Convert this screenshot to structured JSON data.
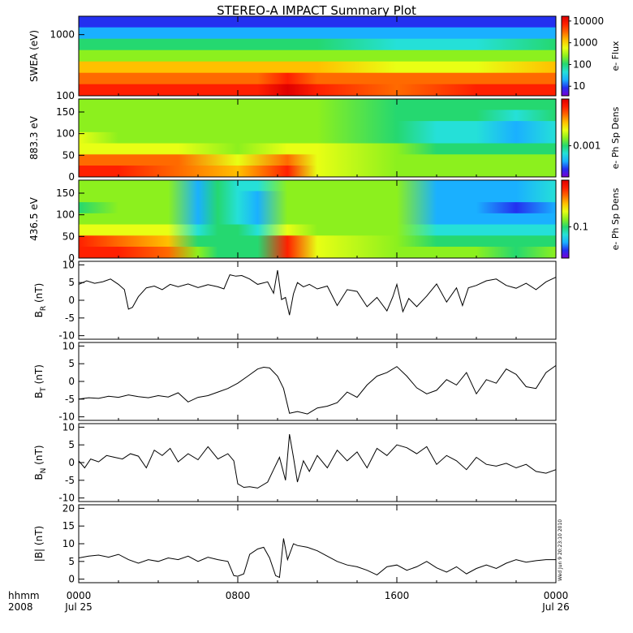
{
  "title": "STEREO-A IMPACT Summary Plot",
  "stamp": "Wed Jun  9 20:23:10 2010",
  "x_axis": {
    "ticks": [
      {
        "hour": 0,
        "time": "0000",
        "date": "Jul 25"
      },
      {
        "hour": 8,
        "time": "0800",
        "date": ""
      },
      {
        "hour": 16,
        "time": "1600",
        "date": ""
      },
      {
        "hour": 24,
        "time": "0000",
        "date": "Jul 26"
      }
    ],
    "left_label_top": "hhmm",
    "left_label_bottom": "2008"
  },
  "colors": {
    "line": "#000000",
    "axis": "#000000",
    "colormap": [
      "#7a00d6",
      "#2330f0",
      "#1ab0ff",
      "#25e0d8",
      "#25d870",
      "#8cf01e",
      "#e8ff14",
      "#ffc000",
      "#ff6a00",
      "#ff2000",
      "#e00000"
    ]
  },
  "chart_data": [
    {
      "type": "heatmap",
      "panel": "swea",
      "ylabel": "SWEA (eV)",
      "yscale": "log",
      "ylim": [
        100,
        2000
      ],
      "yticks": [
        "100",
        "1000"
      ],
      "colorbar": {
        "label": "e- Flux",
        "scale": "log",
        "ticks": [
          "10",
          "100",
          "1000",
          "10000"
        ]
      },
      "x_hours": [
        0,
        3,
        6,
        9,
        10.5,
        12,
        16,
        20,
        24
      ],
      "rows": [
        {
          "energy_eV": 2000,
          "levels": [
            0.05,
            0.05,
            0.05,
            0.05,
            0.05,
            0.05,
            0.05,
            0.05,
            0.05
          ]
        },
        {
          "energy_eV": 1500,
          "levels": [
            0.2,
            0.2,
            0.2,
            0.2,
            0.2,
            0.2,
            0.18,
            0.2,
            0.2
          ]
        },
        {
          "energy_eV": 1000,
          "levels": [
            0.35,
            0.35,
            0.35,
            0.35,
            0.38,
            0.35,
            0.3,
            0.33,
            0.35
          ]
        },
        {
          "energy_eV": 600,
          "levels": [
            0.5,
            0.5,
            0.5,
            0.5,
            0.52,
            0.5,
            0.45,
            0.48,
            0.5
          ]
        },
        {
          "energy_eV": 350,
          "levels": [
            0.65,
            0.65,
            0.66,
            0.66,
            0.7,
            0.66,
            0.62,
            0.64,
            0.66
          ]
        },
        {
          "energy_eV": 200,
          "levels": [
            0.8,
            0.8,
            0.8,
            0.8,
            0.9,
            0.82,
            0.76,
            0.8,
            0.8
          ]
        },
        {
          "energy_eV": 100,
          "levels": [
            0.88,
            0.88,
            0.88,
            0.88,
            0.96,
            0.9,
            0.84,
            0.88,
            0.88
          ]
        }
      ]
    },
    {
      "type": "heatmap",
      "panel": "pad883",
      "ylabel": "883.3 eV",
      "ylim": [
        0,
        180
      ],
      "yticks": [
        "0",
        "50",
        "100",
        "150"
      ],
      "colorbar": {
        "label": "e- Ph Sp Dens",
        "scale": "log",
        "ticks": [
          "0.001"
        ]
      },
      "x_hours": [
        0,
        2,
        5,
        8,
        10.5,
        12,
        16,
        18,
        20,
        22,
        24
      ],
      "rows": [
        {
          "pitch_deg": 170,
          "levels": [
            0.5,
            0.5,
            0.5,
            0.45,
            0.48,
            0.5,
            0.4,
            0.35,
            0.4,
            0.35,
            0.4
          ]
        },
        {
          "pitch_deg": 135,
          "levels": [
            0.5,
            0.5,
            0.48,
            0.45,
            0.48,
            0.5,
            0.4,
            0.35,
            0.35,
            0.3,
            0.35
          ]
        },
        {
          "pitch_deg": 100,
          "levels": [
            0.52,
            0.5,
            0.5,
            0.46,
            0.5,
            0.5,
            0.38,
            0.3,
            0.25,
            0.2,
            0.3
          ]
        },
        {
          "pitch_deg": 70,
          "levels": [
            0.55,
            0.54,
            0.52,
            0.48,
            0.52,
            0.52,
            0.4,
            0.32,
            0.25,
            0.2,
            0.3
          ]
        },
        {
          "pitch_deg": 45,
          "levels": [
            0.62,
            0.6,
            0.58,
            0.52,
            0.6,
            0.56,
            0.45,
            0.4,
            0.38,
            0.35,
            0.4
          ]
        },
        {
          "pitch_deg": 20,
          "levels": [
            0.8,
            0.78,
            0.75,
            0.6,
            0.82,
            0.6,
            0.5,
            0.48,
            0.5,
            0.5,
            0.5
          ]
        },
        {
          "pitch_deg": 5,
          "levels": [
            0.88,
            0.86,
            0.84,
            0.65,
            0.9,
            0.62,
            0.52,
            0.5,
            0.52,
            0.52,
            0.52
          ]
        }
      ]
    },
    {
      "type": "heatmap",
      "panel": "pad436",
      "ylabel": "436.5 eV",
      "ylim": [
        0,
        180
      ],
      "yticks": [
        "0",
        "50",
        "100",
        "150"
      ],
      "colorbar": {
        "label": "e- Ph Sp Dens",
        "scale": "log",
        "ticks": [
          "0.1"
        ]
      },
      "x_hours": [
        0,
        2,
        4.5,
        6,
        7,
        8,
        9,
        10.5,
        12,
        16,
        18,
        20,
        22,
        24
      ],
      "rows": [
        {
          "pitch_deg": 170,
          "levels": [
            0.45,
            0.45,
            0.45,
            0.2,
            0.35,
            0.3,
            0.25,
            0.45,
            0.45,
            0.45,
            0.2,
            0.2,
            0.2,
            0.25
          ]
        },
        {
          "pitch_deg": 135,
          "levels": [
            0.45,
            0.45,
            0.45,
            0.18,
            0.35,
            0.3,
            0.22,
            0.45,
            0.45,
            0.45,
            0.2,
            0.18,
            0.18,
            0.25
          ]
        },
        {
          "pitch_deg": 100,
          "levels": [
            0.4,
            0.45,
            0.45,
            0.15,
            0.35,
            0.3,
            0.2,
            0.45,
            0.45,
            0.45,
            0.18,
            0.15,
            0.12,
            0.2
          ]
        },
        {
          "pitch_deg": 70,
          "levels": [
            0.45,
            0.48,
            0.48,
            0.2,
            0.35,
            0.32,
            0.22,
            0.48,
            0.5,
            0.48,
            0.2,
            0.2,
            0.15,
            0.22
          ]
        },
        {
          "pitch_deg": 45,
          "levels": [
            0.6,
            0.58,
            0.55,
            0.3,
            0.35,
            0.35,
            0.3,
            0.62,
            0.52,
            0.5,
            0.3,
            0.3,
            0.25,
            0.3
          ]
        },
        {
          "pitch_deg": 20,
          "levels": [
            0.85,
            0.78,
            0.72,
            0.4,
            0.35,
            0.38,
            0.35,
            0.85,
            0.55,
            0.5,
            0.4,
            0.4,
            0.38,
            0.4
          ]
        },
        {
          "pitch_deg": 5,
          "levels": [
            0.92,
            0.86,
            0.8,
            0.45,
            0.35,
            0.4,
            0.4,
            0.92,
            0.58,
            0.5,
            0.45,
            0.45,
            0.42,
            0.45
          ]
        }
      ]
    },
    {
      "type": "line",
      "panel": "br",
      "ylabel": "B",
      "ylabel_sub": "R",
      "ylabel_suffix": " (nT)",
      "ylim": [
        -11,
        11
      ],
      "yticks": [
        -10,
        -5,
        0,
        5,
        10
      ],
      "x": [
        0,
        0.4,
        0.8,
        1.2,
        1.6,
        2.0,
        2.3,
        2.5,
        2.7,
        3.0,
        3.4,
        3.8,
        4.2,
        4.6,
        5.0,
        5.5,
        6.0,
        6.5,
        7.0,
        7.3,
        7.6,
        7.9,
        8.2,
        8.6,
        9.0,
        9.5,
        9.8,
        10.0,
        10.2,
        10.4,
        10.6,
        10.8,
        11.0,
        11.3,
        11.6,
        12.0,
        12.5,
        13.0,
        13.5,
        14.0,
        14.5,
        15.0,
        15.5,
        15.8,
        16.0,
        16.3,
        16.6,
        17.0,
        17.5,
        18.0,
        18.5,
        19.0,
        19.3,
        19.6,
        20.0,
        20.5,
        21.0,
        21.5,
        22.0,
        22.5,
        23.0,
        23.5,
        24.0
      ],
      "y": [
        4.5,
        5.5,
        4.8,
        5.2,
        6.0,
        4.5,
        3.0,
        -2.5,
        -2.0,
        1.0,
        3.5,
        4.0,
        3.0,
        4.5,
        3.8,
        4.6,
        3.6,
        4.4,
        3.8,
        3.2,
        7.2,
        6.8,
        7.0,
        6.0,
        4.5,
        5.2,
        2.0,
        8.5,
        0.2,
        0.8,
        -4.2,
        1.8,
        5.0,
        3.8,
        4.5,
        3.2,
        4.0,
        -1.5,
        3.0,
        2.5,
        -1.8,
        0.8,
        -3.0,
        1.0,
        4.5,
        -3.2,
        0.5,
        -1.8,
        1.2,
        4.6,
        -0.5,
        3.5,
        -1.5,
        3.5,
        4.2,
        5.5,
        6.0,
        4.2,
        3.4,
        4.8,
        3.0,
        5.2,
        6.5
      ]
    },
    {
      "type": "line",
      "panel": "bt",
      "ylabel": "B",
      "ylabel_sub": "T",
      "ylabel_suffix": " (nT)",
      "ylim": [
        -11,
        11
      ],
      "yticks": [
        -10,
        -5,
        0,
        5,
        10
      ],
      "x": [
        0,
        0.5,
        1.0,
        1.5,
        2.0,
        2.5,
        3.0,
        3.5,
        4.0,
        4.5,
        5.0,
        5.5,
        6.0,
        6.5,
        7.0,
        7.5,
        8.0,
        8.5,
        9.0,
        9.3,
        9.6,
        10.0,
        10.3,
        10.6,
        11.0,
        11.5,
        12.0,
        12.5,
        13.0,
        13.5,
        14.0,
        14.5,
        15.0,
        15.5,
        16.0,
        16.5,
        17.0,
        17.5,
        18.0,
        18.5,
        19.0,
        19.5,
        20.0,
        20.5,
        21.0,
        21.5,
        22.0,
        22.5,
        23.0,
        23.5,
        24.0
      ],
      "y": [
        -5.0,
        -4.6,
        -4.8,
        -4.2,
        -4.5,
        -3.8,
        -4.3,
        -4.6,
        -4.0,
        -4.4,
        -3.2,
        -5.8,
        -4.5,
        -4.0,
        -3.0,
        -2.0,
        -0.5,
        1.5,
        3.5,
        4.0,
        3.8,
        1.5,
        -2.0,
        -9.0,
        -8.5,
        -9.2,
        -7.5,
        -7.0,
        -6.0,
        -3.0,
        -4.5,
        -1.0,
        1.5,
        2.5,
        4.2,
        1.5,
        -1.8,
        -3.5,
        -2.5,
        0.5,
        -1.0,
        2.5,
        -3.5,
        0.5,
        -0.5,
        3.5,
        2.0,
        -1.5,
        -2.0,
        2.5,
        4.5
      ]
    },
    {
      "type": "line",
      "panel": "bn",
      "ylabel": "B",
      "ylabel_sub": "N",
      "ylabel_suffix": " (nT)",
      "ylim": [
        -11,
        11
      ],
      "yticks": [
        -10,
        -5,
        0,
        5,
        10
      ],
      "x": [
        0,
        0.3,
        0.6,
        1.0,
        1.4,
        1.8,
        2.2,
        2.6,
        3.0,
        3.4,
        3.8,
        4.2,
        4.6,
        5.0,
        5.5,
        6.0,
        6.5,
        7.0,
        7.5,
        7.8,
        8.0,
        8.3,
        8.6,
        9.0,
        9.5,
        9.8,
        10.1,
        10.4,
        10.6,
        10.8,
        11.0,
        11.3,
        11.6,
        12.0,
        12.5,
        13.0,
        13.5,
        14.0,
        14.5,
        15.0,
        15.5,
        16.0,
        16.5,
        17.0,
        17.5,
        18.0,
        18.5,
        19.0,
        19.5,
        20.0,
        20.5,
        21.0,
        21.5,
        22.0,
        22.5,
        23.0,
        23.5,
        24.0
      ],
      "y": [
        0.5,
        -1.5,
        1.0,
        0.2,
        2.0,
        1.5,
        1.0,
        2.5,
        1.8,
        -1.5,
        3.5,
        2.0,
        4.0,
        0.2,
        2.5,
        0.8,
        4.5,
        1.0,
        2.5,
        0.5,
        -6.0,
        -7.0,
        -6.8,
        -7.2,
        -5.5,
        -2.0,
        1.5,
        -5.0,
        8.0,
        1.5,
        -5.5,
        0.5,
        -2.5,
        2.0,
        -1.5,
        3.5,
        0.5,
        3.0,
        -1.5,
        4.0,
        2.0,
        5.0,
        4.2,
        2.5,
        4.5,
        -0.5,
        2.0,
        0.5,
        -2.0,
        1.5,
        -0.5,
        -1.0,
        -0.2,
        -1.5,
        -0.5,
        -2.5,
        -3.0,
        -2.0
      ]
    },
    {
      "type": "line",
      "panel": "bmag",
      "ylabel": "|B| (nT)",
      "ylim": [
        -1,
        21
      ],
      "yticks": [
        0,
        5,
        10,
        15,
        20
      ],
      "x": [
        0,
        0.5,
        1.0,
        1.5,
        2.0,
        2.5,
        3.0,
        3.5,
        4.0,
        4.5,
        5.0,
        5.5,
        6.0,
        6.5,
        7.0,
        7.5,
        7.8,
        8.0,
        8.3,
        8.6,
        9.0,
        9.3,
        9.6,
        9.9,
        10.1,
        10.3,
        10.5,
        10.8,
        11.0,
        11.5,
        12.0,
        12.5,
        13.0,
        13.5,
        14.0,
        14.5,
        15.0,
        15.5,
        16.0,
        16.5,
        17.0,
        17.5,
        18.0,
        18.5,
        19.0,
        19.5,
        20.0,
        20.5,
        21.0,
        21.5,
        22.0,
        22.5,
        23.0,
        23.5,
        24.0
      ],
      "y": [
        6.0,
        6.5,
        6.8,
        6.2,
        7.0,
        5.5,
        4.5,
        5.5,
        5.0,
        6.0,
        5.5,
        6.5,
        5.0,
        6.2,
        5.5,
        5.0,
        1.0,
        0.8,
        1.5,
        7.0,
        8.5,
        9.0,
        6.0,
        1.0,
        0.5,
        11.5,
        5.5,
        10.0,
        9.5,
        9.0,
        8.0,
        6.5,
        5.0,
        4.0,
        3.5,
        2.5,
        1.2,
        3.5,
        4.0,
        2.5,
        3.5,
        5.0,
        3.2,
        2.0,
        3.5,
        1.5,
        3.0,
        4.0,
        3.0,
        4.5,
        5.5,
        4.8,
        5.2,
        5.5,
        5.5
      ]
    }
  ]
}
